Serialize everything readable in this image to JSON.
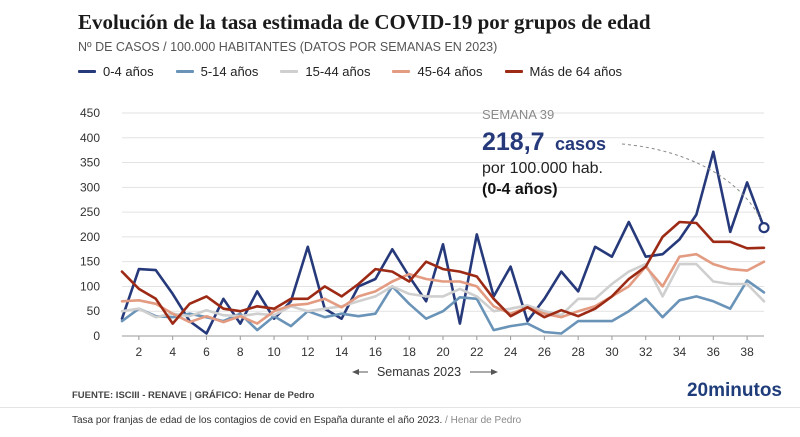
{
  "header": {
    "title": "Evolución de la tasa estimada de COVID-19 por grupos de edad",
    "subtitle": "Nº DE CASOS / 100.000 HABITANTES (DATOS POR SEMANAS EN 2023)"
  },
  "annotation": {
    "week": "SEMANA 39",
    "value": "218,7",
    "unit": "casos",
    "line2": "por 100.000 hab.",
    "line3": "(0-4 años)"
  },
  "footer": {
    "source_label": "FUENTE: ISCIII - RENAVE",
    "separator": "|",
    "graphic_label": "GRÁFICO: Henar de Pedro",
    "brand": "20minutos",
    "caption": "Tasa por franjas de edad de los contagios de covid en España durante el año 2023.",
    "caption_credit": "/ Henar de Pedro"
  },
  "chart_data": {
    "type": "line",
    "xlabel": "Semanas 2023",
    "ylabel": "",
    "x": [
      1,
      2,
      3,
      4,
      5,
      6,
      7,
      8,
      9,
      10,
      11,
      12,
      13,
      14,
      15,
      16,
      17,
      18,
      19,
      20,
      21,
      22,
      23,
      24,
      25,
      26,
      27,
      28,
      29,
      30,
      31,
      32,
      33,
      34,
      35,
      36,
      37,
      38,
      39
    ],
    "xticks": [
      2,
      4,
      6,
      8,
      10,
      12,
      14,
      16,
      18,
      20,
      22,
      24,
      26,
      28,
      30,
      32,
      34,
      36,
      38
    ],
    "xlim": [
      1,
      39
    ],
    "ylim": [
      0,
      450
    ],
    "yticks": [
      0,
      50,
      100,
      150,
      200,
      250,
      300,
      350,
      400,
      450
    ],
    "grid": true,
    "legend_position": "top",
    "series": [
      {
        "name": "0-4 años",
        "color": "#26397a",
        "values": [
          35,
          135,
          133,
          85,
          30,
          5,
          75,
          25,
          90,
          35,
          70,
          180,
          55,
          35,
          100,
          115,
          175,
          120,
          70,
          185,
          25,
          205,
          80,
          140,
          30,
          75,
          130,
          90,
          180,
          160,
          230,
          160,
          165,
          195,
          245,
          372,
          210,
          310,
          218.7
        ]
      },
      {
        "name": "5-14 años",
        "color": "#6a93b8",
        "values": [
          30,
          55,
          40,
          38,
          45,
          38,
          30,
          45,
          12,
          40,
          20,
          50,
          38,
          45,
          40,
          45,
          100,
          65,
          35,
          50,
          78,
          75,
          12,
          20,
          25,
          8,
          5,
          30,
          30,
          30,
          50,
          75,
          38,
          72,
          80,
          70,
          55,
          112,
          88
        ]
      },
      {
        "name": "15-44 años",
        "color": "#cfcfcf",
        "values": [
          50,
          55,
          38,
          45,
          40,
          52,
          42,
          40,
          45,
          42,
          60,
          50,
          55,
          60,
          70,
          80,
          100,
          85,
          80,
          80,
          95,
          80,
          50,
          55,
          62,
          50,
          42,
          75,
          75,
          105,
          130,
          145,
          80,
          145,
          145,
          110,
          105,
          105,
          70
        ]
      },
      {
        "name": "45-64 años",
        "color": "#e39b82",
        "values": [
          70,
          72,
          65,
          45,
          28,
          40,
          28,
          40,
          25,
          50,
          62,
          65,
          75,
          58,
          80,
          90,
          110,
          125,
          115,
          110,
          110,
          100,
          60,
          45,
          58,
          45,
          38,
          50,
          60,
          80,
          100,
          140,
          100,
          160,
          165,
          145,
          135,
          132,
          150
        ]
      },
      {
        "name": "Más de 64 años",
        "color": "#9c2a15",
        "values": [
          130,
          95,
          75,
          25,
          65,
          80,
          55,
          50,
          60,
          55,
          75,
          75,
          100,
          80,
          105,
          135,
          130,
          110,
          150,
          135,
          130,
          120,
          75,
          40,
          58,
          38,
          52,
          40,
          55,
          80,
          115,
          140,
          200,
          230,
          228,
          190,
          190,
          177,
          178
        ]
      }
    ]
  }
}
